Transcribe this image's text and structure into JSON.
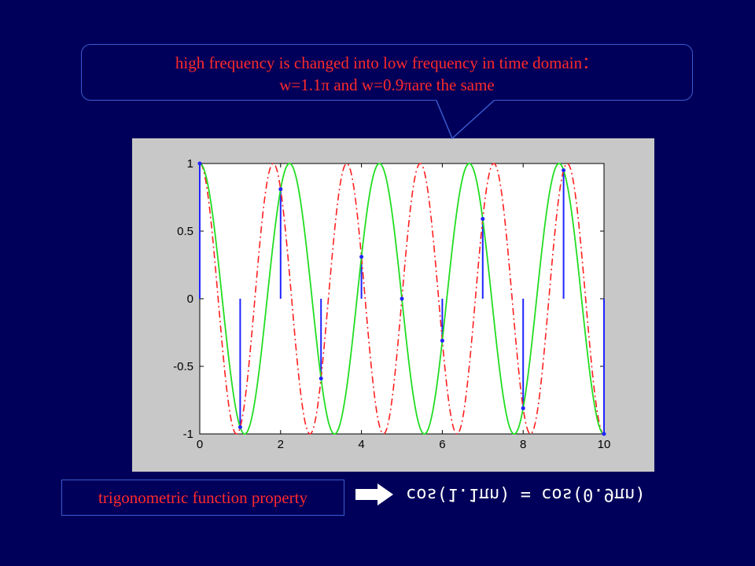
{
  "callout": {
    "line1": "high frequency is changed into low frequency in time domain：",
    "line2": "w=1.1π and w=0.9πare the same"
  },
  "caption": "trigonometric function property",
  "formula": "cos(1.1πn) = cos(0.9πn)",
  "colors": {
    "background": "#00005a",
    "red_text": "#ff2a2a",
    "green_curve": "#22dd22",
    "red_curve": "#ff2020",
    "stem": "#1f24ff"
  },
  "icons": [
    "arrow-right-icon"
  ],
  "chart_data": {
    "type": "line",
    "title": "",
    "xlabel": "",
    "ylabel": "",
    "xlim": [
      0,
      10
    ],
    "ylim": [
      -1,
      1
    ],
    "xticks": [
      "0",
      "2",
      "4",
      "6",
      "8",
      "10"
    ],
    "yticks": [
      "1",
      "0.5",
      "0",
      "-0.5",
      "-1"
    ],
    "stems": {
      "n": [
        0,
        1,
        2,
        3,
        4,
        5,
        6,
        7,
        8,
        9,
        10
      ],
      "values": [
        1,
        -0.95,
        0.81,
        -0.59,
        0.31,
        0,
        -0.31,
        0.59,
        -0.81,
        0.95,
        -1
      ]
    },
    "series": [
      {
        "style": "solid",
        "color": "#22dd22",
        "omega_over_pi": 0.9
      },
      {
        "style": "dash-dot",
        "color": "#ff2020",
        "omega_over_pi": 1.1
      }
    ]
  }
}
